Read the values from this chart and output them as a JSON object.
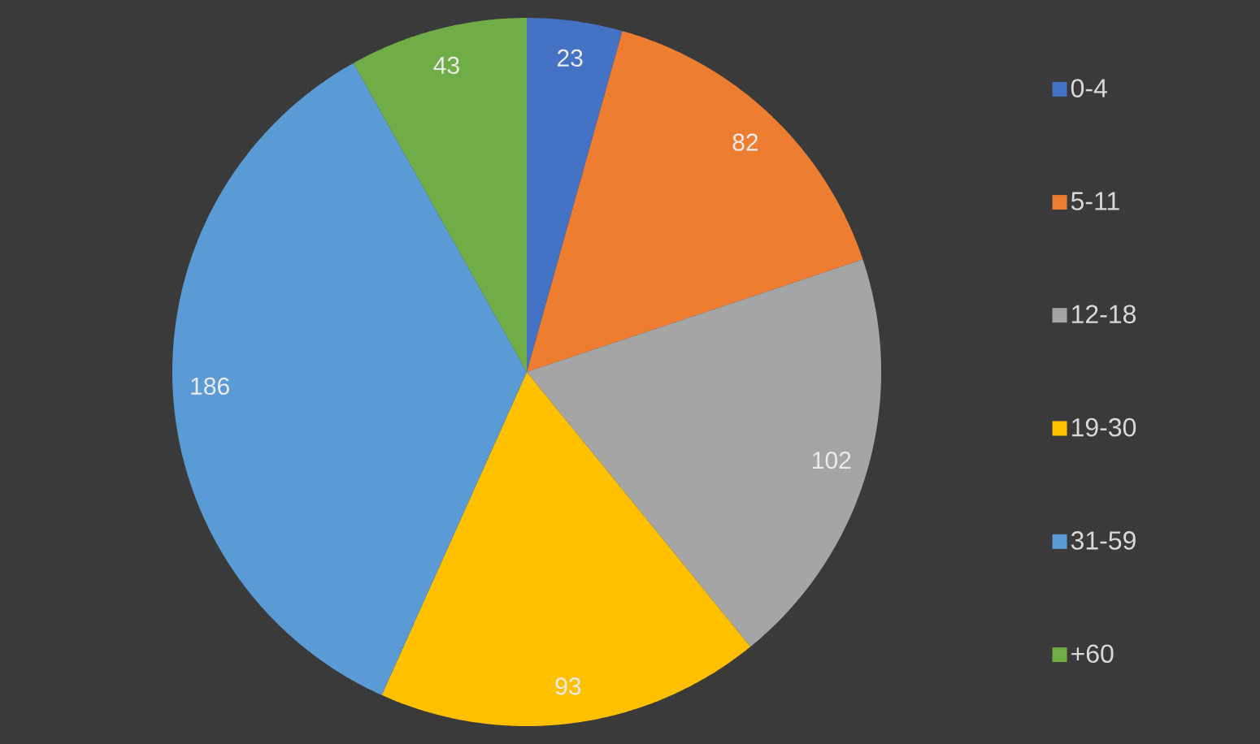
{
  "chart_data": {
    "type": "pie",
    "categories": [
      "0-4",
      "5-11",
      "12-18",
      "19-30",
      "31-59",
      "+60"
    ],
    "values": [
      23,
      82,
      102,
      93,
      186,
      43
    ],
    "colors": [
      "#4472c4",
      "#ed7d31",
      "#a5a5a5",
      "#ffc000",
      "#5b9bd5",
      "#70ad47"
    ],
    "data_labels": true,
    "legend": "right"
  }
}
